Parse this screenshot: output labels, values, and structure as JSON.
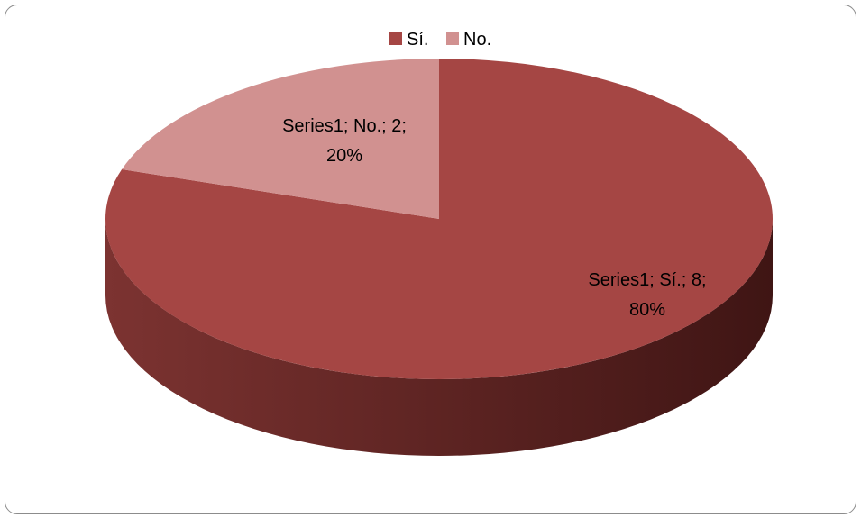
{
  "chart_data": {
    "type": "pie",
    "style": "3d",
    "legend_position": "top",
    "slices": [
      {
        "label": "Sí.",
        "value": 8,
        "percent": "80%",
        "color": "#a54644",
        "data_label_line1": "Series1; Sí.; 8;",
        "data_label_line2": "80%"
      },
      {
        "label": "No.",
        "value": 2,
        "percent": "20%",
        "color": "#d19190",
        "data_label_line1": "Series1; No.; 2;",
        "data_label_line2": "20%"
      }
    ],
    "colors": {
      "side_light": "#7c3331",
      "side_dark": "#3f1514"
    }
  }
}
